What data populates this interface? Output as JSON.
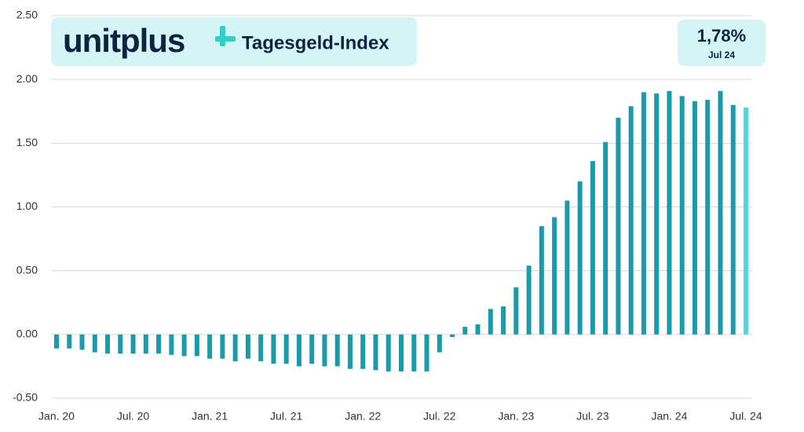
{
  "chart_data": {
    "type": "bar",
    "logo": "unitplus",
    "title": "Tagesgeld-Index",
    "annotation": {
      "value_label": "1,78%",
      "period": "Jul 24"
    },
    "categories": [
      "Jan. 20",
      null,
      null,
      null,
      null,
      null,
      "Jul. 20",
      null,
      null,
      null,
      null,
      null,
      "Jan. 21",
      null,
      null,
      null,
      null,
      null,
      "Jul. 21",
      null,
      null,
      null,
      null,
      null,
      "Jan. 22",
      null,
      null,
      null,
      null,
      null,
      "Jul. 22",
      null,
      null,
      null,
      null,
      null,
      "Jan. 23",
      null,
      null,
      null,
      null,
      null,
      "Jul. 23",
      null,
      null,
      null,
      null,
      null,
      "Jan. 24",
      null,
      null,
      null,
      null,
      null,
      "Jul. 24"
    ],
    "values": [
      -0.11,
      -0.11,
      -0.12,
      -0.14,
      -0.15,
      -0.15,
      -0.15,
      -0.15,
      -0.15,
      -0.16,
      -0.17,
      -0.17,
      -0.19,
      -0.19,
      -0.21,
      -0.19,
      -0.21,
      -0.23,
      -0.23,
      -0.25,
      -0.23,
      -0.25,
      -0.25,
      -0.27,
      -0.27,
      -0.28,
      -0.29,
      -0.29,
      -0.29,
      -0.29,
      -0.14,
      -0.02,
      0.06,
      0.08,
      0.2,
      0.22,
      0.37,
      0.54,
      0.85,
      0.92,
      1.05,
      1.2,
      1.36,
      1.51,
      1.7,
      1.79,
      1.9,
      1.89,
      1.91,
      1.87,
      1.83,
      1.84,
      1.91,
      1.8,
      1.78
    ],
    "color": "#1a9aaa",
    "highlight_color": "#4fd8e0",
    "highlight_last": true,
    "ylim": [
      -0.5,
      2.5
    ],
    "yticks": [
      {
        "value": -0.5,
        "label": "-0.50"
      },
      {
        "value": 0,
        "label": "0.00"
      },
      {
        "value": 0.5,
        "label": "0.50"
      },
      {
        "value": 1,
        "label": "1.00"
      },
      {
        "value": 1.5,
        "label": "1.50"
      },
      {
        "value": 2,
        "label": "2.00"
      },
      {
        "value": 2.5,
        "label": "2.50"
      }
    ],
    "grid": true
  }
}
